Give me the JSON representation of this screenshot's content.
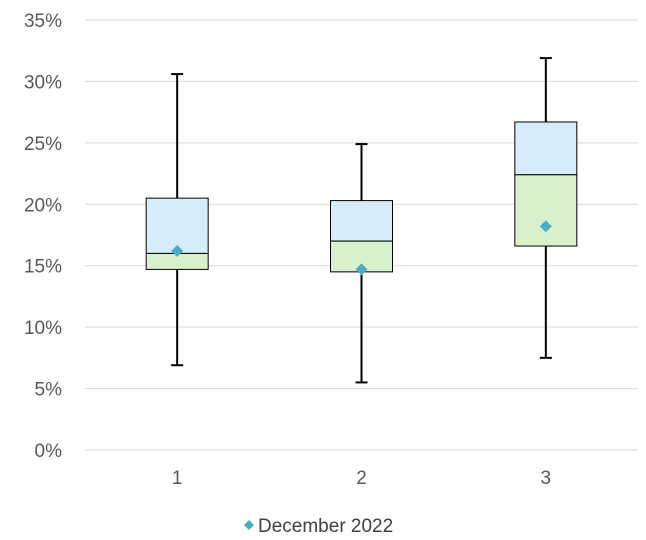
{
  "chart_data": {
    "type": "box",
    "categories": [
      "1",
      "2",
      "3"
    ],
    "y_tick_labels": [
      "0%",
      "5%",
      "10%",
      "15%",
      "20%",
      "25%",
      "30%",
      "35%"
    ],
    "ylim": [
      0,
      35
    ],
    "grid": true,
    "boxes": [
      {
        "category": "1",
        "min": 6.9,
        "q1": 14.7,
        "median": 16.0,
        "q3": 20.5,
        "max": 30.6,
        "marker": 16.2
      },
      {
        "category": "2",
        "min": 5.5,
        "q1": 14.5,
        "median": 17.0,
        "q3": 20.3,
        "max": 24.9,
        "marker": 14.7
      },
      {
        "category": "3",
        "min": 7.5,
        "q1": 16.6,
        "median": 22.4,
        "q3": 26.7,
        "max": 31.9,
        "marker": 18.2
      }
    ],
    "legend": {
      "position": "bottom",
      "entries": [
        {
          "name": "December 2022"
        }
      ]
    },
    "colors": {
      "upper_box": "#d6ecfa",
      "lower_box": "#d9f0cc",
      "box_stroke": "#000000",
      "whisker": "#000000",
      "marker": "#4bacc6",
      "grid": "#d9d9d9"
    }
  }
}
